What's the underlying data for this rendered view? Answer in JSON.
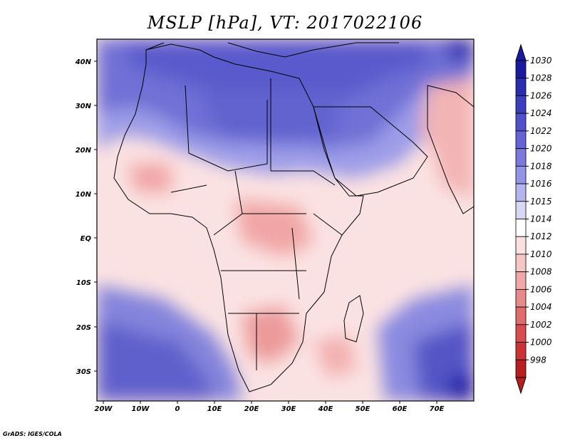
{
  "title": "MSLP [hPa], VT: 2017022106",
  "credit": "GrADS: IGES/COLA",
  "map": {
    "lon_labels": [
      "20W",
      "10W",
      "0",
      "10E",
      "20E",
      "30E",
      "40E",
      "50E",
      "60E",
      "70E"
    ],
    "lat_labels": [
      "40N",
      "30N",
      "20N",
      "10N",
      "EQ",
      "10S",
      "20S",
      "30S"
    ],
    "region": "Africa, Middle East, Arabian Sea"
  },
  "colorbar": {
    "levels": [
      "1030",
      "1028",
      "1026",
      "1024",
      "1022",
      "1020",
      "1018",
      "1016",
      "1015",
      "1014",
      "1012",
      "1010",
      "1008",
      "1006",
      "1004",
      "1002",
      "1000",
      "998"
    ],
    "colors": [
      "#1a1aa0",
      "#2b2bb0",
      "#3d3dc0",
      "#5050cc",
      "#6464d6",
      "#7a7ade",
      "#9494e6",
      "#b4b4ee",
      "#d8d8f6",
      "#ffffff",
      "#fbe0e0",
      "#f6c6c6",
      "#f0a8a8",
      "#e88a8a",
      "#e06c6c",
      "#d84e4e",
      "#cc3434",
      "#b81e1e"
    ]
  }
}
